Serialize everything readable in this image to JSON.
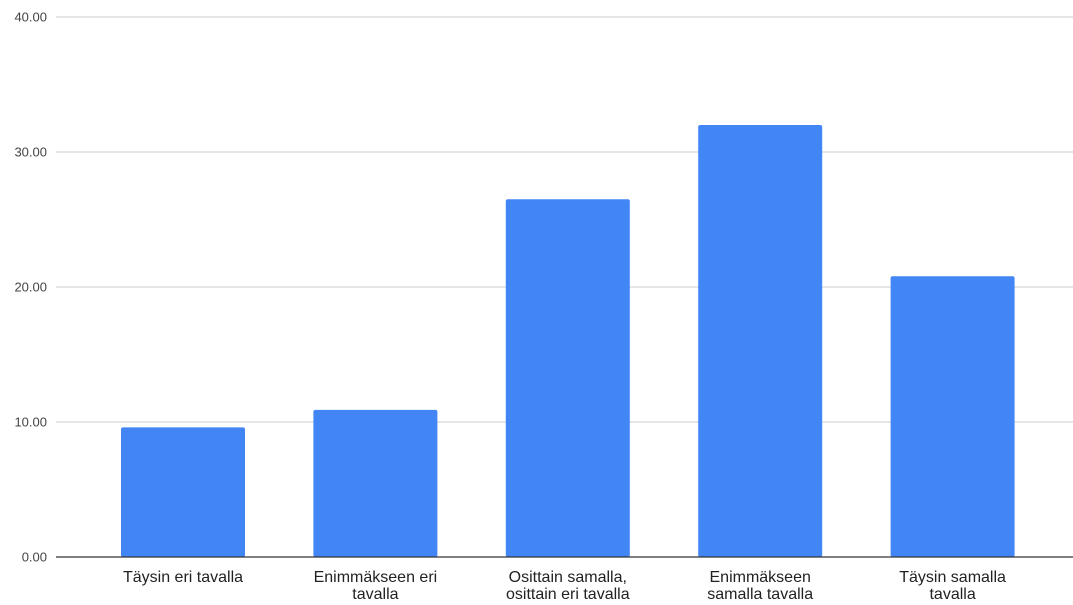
{
  "chart_data": {
    "type": "bar",
    "title": "",
    "xlabel": "",
    "ylabel": "",
    "categories": [
      [
        "Täysin eri tavalla"
      ],
      [
        "Enimmäkseen eri",
        "tavalla"
      ],
      [
        "Osittain samalla,",
        "osittain eri tavalla"
      ],
      [
        "Enimmäkseen",
        "samalla tavalla"
      ],
      [
        "Täysin samalla",
        "tavalla"
      ]
    ],
    "values": [
      9.6,
      10.9,
      26.5,
      32.0,
      20.8
    ],
    "ylim": [
      0,
      40
    ],
    "yticks": [
      "0.00",
      "10.00",
      "20.00",
      "30.00",
      "40.00"
    ],
    "grid": true,
    "bar_color": "#4285f4"
  }
}
